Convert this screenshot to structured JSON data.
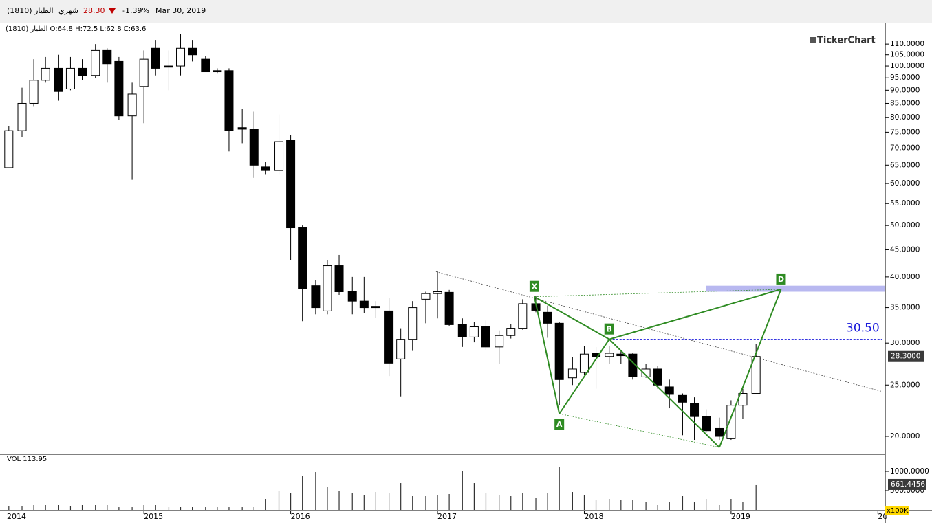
{
  "header": {
    "symbol": "الطيار (1810)",
    "period": "شهري",
    "last": "28.30",
    "change": "-1.39%",
    "date": "Mar 30, 2019",
    "ohlc_text": "الطيار (1810) O:64.8 H:72.5 L:62.8 C:63.6",
    "brand": "TickerChart"
  },
  "chart_data": [
    {
      "type": "candlestick",
      "log_scale": true,
      "up_color": "#ffffff",
      "down_color": "#000000",
      "x": [
        2014.08,
        2014.17,
        2014.25,
        2014.33,
        2014.42,
        2014.5,
        2014.58,
        2014.67,
        2014.75,
        2014.83,
        2014.92,
        2015,
        2015.08,
        2015.17,
        2015.25,
        2015.33,
        2015.42,
        2015.5,
        2015.58,
        2015.67,
        2015.75,
        2015.83,
        2015.92,
        2016,
        2016.08,
        2016.17,
        2016.25,
        2016.33,
        2016.42,
        2016.5,
        2016.58,
        2016.67,
        2016.75,
        2016.83,
        2016.92,
        2017,
        2017.08,
        2017.17,
        2017.25,
        2017.33,
        2017.42,
        2017.5,
        2017.58,
        2017.67,
        2017.75,
        2017.83,
        2017.92,
        2018,
        2018.08,
        2018.17,
        2018.25,
        2018.33,
        2018.42,
        2018.5,
        2018.58,
        2018.67,
        2018.75,
        2018.83,
        2018.92,
        2019,
        2019.08,
        2019.17
      ],
      "open": [
        64.3,
        75.5,
        85,
        94,
        99,
        90.5,
        99,
        96,
        107,
        102,
        80.5,
        91.5,
        108,
        100,
        100,
        108,
        103,
        98,
        98,
        76.5,
        76,
        64.5,
        63.5,
        72.5,
        49.5,
        38.5,
        34.5,
        42,
        37.5,
        36,
        35.2,
        34.5,
        28,
        30.5,
        36.3,
        37.2,
        37.4,
        32.5,
        30.8,
        32.2,
        29.5,
        31,
        32,
        35.6,
        34.3,
        32.7,
        25.8,
        26.4,
        28.7,
        28.3,
        28.6,
        28.6,
        25.9,
        26.8,
        24.8,
        23.9,
        23.1,
        21.8,
        20.7,
        19.8,
        22.9,
        24.1
      ],
      "high": [
        77,
        91,
        103,
        104,
        105,
        104,
        103,
        110,
        108,
        104,
        93,
        107,
        112,
        107,
        115,
        112,
        104.5,
        99,
        99,
        83,
        82,
        66,
        81,
        74,
        50,
        39.5,
        43,
        44,
        40,
        40,
        36,
        36.5,
        32,
        36,
        37.5,
        41,
        37.8,
        33.4,
        32.9,
        33.1,
        31.7,
        32.6,
        36.3,
        36.8,
        35.3,
        32.9,
        28.2,
        29.6,
        29.5,
        29.6,
        29.1,
        28.7,
        27.4,
        27.2,
        25.6,
        24.1,
        23.7,
        22.5,
        21.7,
        23.4,
        24.6,
        29.9
      ],
      "low": [
        64.3,
        73.5,
        84,
        93,
        86,
        90,
        94,
        95,
        93,
        79,
        61,
        78,
        96,
        90,
        96,
        102,
        97.5,
        97,
        69,
        71.5,
        61.5,
        62.5,
        62.5,
        43,
        33,
        34,
        34,
        37,
        34,
        34.2,
        33.5,
        26,
        23.8,
        29,
        32.7,
        33.4,
        32.3,
        29.5,
        30.1,
        29.1,
        27.4,
        30.6,
        31.8,
        34.3,
        30.7,
        22.9,
        25,
        26.1,
        24.6,
        27.4,
        27.4,
        25.6,
        25.8,
        24.6,
        22.6,
        20.1,
        19.7,
        20.3,
        19.7,
        19.7,
        21.6,
        24.1
      ],
      "close": [
        75.5,
        85,
        94,
        99,
        89.5,
        99,
        96,
        107,
        101,
        80.5,
        88.5,
        103,
        99,
        99.5,
        108,
        105,
        97.5,
        97.5,
        75.5,
        76,
        65,
        63.5,
        72,
        49.5,
        38,
        35,
        42,
        37.5,
        36,
        35,
        35,
        27.5,
        30.5,
        35,
        37.2,
        37.5,
        32.5,
        30.8,
        32.2,
        29.5,
        31,
        32,
        35.6,
        34.6,
        32.7,
        25.6,
        26.8,
        28.6,
        28.3,
        28.7,
        28.4,
        25.9,
        26.8,
        25,
        24,
        23.2,
        21.8,
        20.5,
        20,
        22.9,
        24.1,
        28.3
      ],
      "close_label": "28.3000",
      "xlim": [
        2014.02,
        2020.05
      ],
      "xticks": [
        2014,
        2015,
        2016,
        2017,
        2018,
        2019,
        {
          "value": 2020,
          "label": "20"
        }
      ],
      "ylim": [
        18.56,
        120
      ],
      "yticks": [
        {
          "value": 20,
          "label": "20.0000"
        },
        {
          "value": 25,
          "label": "25.0000"
        },
        {
          "value": 30,
          "label": "30.0000"
        },
        {
          "value": 35,
          "label": "35.0000"
        },
        {
          "value": 40,
          "label": "40.0000"
        },
        {
          "value": 45,
          "label": "45.0000"
        },
        {
          "value": 50,
          "label": "50.0000"
        },
        {
          "value": 55,
          "label": "55.0000"
        },
        {
          "value": 60,
          "label": "60.0000"
        },
        {
          "value": 65,
          "label": "65.0000"
        },
        {
          "value": 70,
          "label": "70.0000"
        },
        {
          "value": 75,
          "label": "75.0000"
        },
        {
          "value": 80,
          "label": "80.0000"
        },
        {
          "value": 85,
          "label": "85.0000"
        },
        {
          "value": 90,
          "label": "90.0000"
        },
        {
          "value": 95,
          "label": "95.0000"
        },
        {
          "value": 100,
          "label": "100.0000"
        },
        {
          "value": 105,
          "label": "105.0000"
        },
        {
          "value": 110,
          "label": "110.0000"
        }
      ],
      "annotations": {
        "pattern_color": "#2e8b22",
        "pattern_points": [
          {
            "label": "X",
            "x": 2017.66,
            "y": 36.7
          },
          {
            "label": "A",
            "x": 2017.83,
            "y": 22.07
          },
          {
            "label": "B",
            "x": 2018.17,
            "y": 30.5
          },
          {
            "label": null,
            "x": 2018.92,
            "y": 19.07
          },
          {
            "label": "D",
            "x": 2019.34,
            "y": 37.9
          }
        ],
        "trendline": {
          "x": [
            2016.99,
            2020.03
          ],
          "y": [
            40.9,
            24.3
          ]
        },
        "level": {
          "label": "30.50",
          "value": 30.5,
          "x": [
            2018.17,
            2020.03
          ],
          "color": "#1a1adb"
        },
        "zone": {
          "x": [
            2018.83,
            2020.05
          ],
          "y": [
            37.5,
            38.5
          ],
          "color": "#b8b8f0"
        }
      }
    },
    {
      "type": "bar",
      "title": "VOL 113.95",
      "unit_label": "x100K",
      "color": "#333333",
      "x": [
        2014.08,
        2014.17,
        2014.25,
        2014.33,
        2014.42,
        2014.5,
        2014.58,
        2014.67,
        2014.75,
        2014.83,
        2014.92,
        2015,
        2015.08,
        2015.17,
        2015.25,
        2015.33,
        2015.42,
        2015.5,
        2015.58,
        2015.67,
        2015.75,
        2015.83,
        2015.92,
        2016,
        2016.08,
        2016.17,
        2016.25,
        2016.33,
        2016.42,
        2016.5,
        2016.58,
        2016.67,
        2016.75,
        2016.83,
        2016.92,
        2017,
        2017.08,
        2017.17,
        2017.25,
        2017.33,
        2017.42,
        2017.5,
        2017.58,
        2017.67,
        2017.75,
        2017.83,
        2017.92,
        2018,
        2018.08,
        2018.17,
        2018.25,
        2018.33,
        2018.42,
        2018.5,
        2018.58,
        2018.67,
        2018.75,
        2018.83,
        2018.92,
        2019,
        2019.08,
        2019.17
      ],
      "values": [
        107,
        107,
        125,
        125,
        125,
        107,
        125,
        125,
        125,
        71,
        71,
        125,
        125,
        71,
        89,
        71,
        71,
        71,
        71,
        71,
        89,
        286,
        500,
        429,
        893,
        982,
        607,
        500,
        429,
        393,
        464,
        429,
        696,
        357,
        357,
        393,
        411,
        1018,
        696,
        429,
        393,
        357,
        429,
        304,
        429,
        1125,
        464,
        393,
        250,
        286,
        250,
        250,
        214,
        125,
        214,
        357,
        196,
        286,
        125,
        286,
        214,
        661.4456
      ],
      "ylim": [
        0,
        1411
      ],
      "yticks": [
        {
          "value": 500,
          "label": "500.0000"
        },
        {
          "value": 1000,
          "label": "1000.0000"
        }
      ]
    }
  ]
}
